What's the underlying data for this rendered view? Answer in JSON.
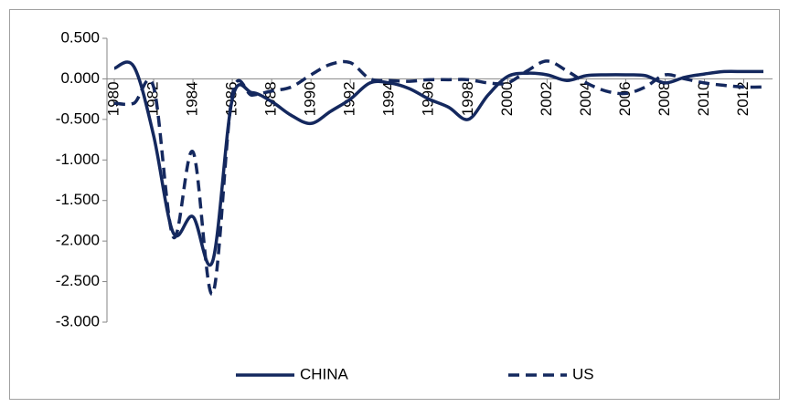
{
  "chart_data": {
    "type": "line",
    "x": [
      1980,
      1981,
      1982,
      1983,
      1984,
      1985,
      1986,
      1987,
      1988,
      1989,
      1990,
      1991,
      1992,
      1993,
      1994,
      1995,
      1996,
      1997,
      1998,
      1999,
      2000,
      2001,
      2002,
      2003,
      2004,
      2005,
      2006,
      2007,
      2008,
      2009,
      2010,
      2011,
      2012,
      2013
    ],
    "xlim": [
      1980,
      2013
    ],
    "xticks": [
      1980,
      1982,
      1984,
      1986,
      1988,
      1990,
      1992,
      1994,
      1996,
      1998,
      2000,
      2002,
      2004,
      2006,
      2008,
      2010,
      2012
    ],
    "ylim": [
      -3,
      0.5
    ],
    "yticks": [
      {
        "value": 0.5,
        "label": "0.500"
      },
      {
        "value": 0,
        "label": "0.000"
      },
      {
        "value": -0.5,
        "label": "-0.500"
      },
      {
        "value": -1,
        "label": "-1.000"
      },
      {
        "value": -1.5,
        "label": "-1.500"
      },
      {
        "value": -2,
        "label": "-2.000"
      },
      {
        "value": -2.5,
        "label": "-2.500"
      },
      {
        "value": -3,
        "label": "-3.000"
      }
    ],
    "legend": "bottom",
    "series": [
      {
        "name": "CHINA",
        "color": "#14285e",
        "line_style": "solid",
        "values": [
          0.13,
          0.15,
          -0.7,
          -1.9,
          -1.7,
          -2.25,
          -0.25,
          -0.17,
          -0.28,
          -0.45,
          -0.55,
          -0.4,
          -0.25,
          -0.05,
          -0.05,
          -0.12,
          -0.25,
          -0.35,
          -0.5,
          -0.2,
          0.03,
          0.07,
          0.05,
          -0.02,
          0.04,
          0.05,
          0.05,
          0.04,
          -0.05,
          0.02,
          0.06,
          0.09,
          0.09,
          0.09
        ]
      },
      {
        "name": "US",
        "color": "#14285e",
        "line_style": "dashed",
        "values": [
          -0.3,
          -0.3,
          -0.1,
          -1.95,
          -0.9,
          -2.65,
          -0.2,
          -0.2,
          -0.15,
          -0.1,
          0.05,
          0.18,
          0.2,
          0,
          -0.02,
          -0.03,
          -0.01,
          -0.01,
          -0.01,
          -0.05,
          -0.05,
          0.1,
          0.22,
          0.1,
          -0.05,
          -0.15,
          -0.18,
          -0.1,
          0.05,
          0,
          -0.05,
          -0.08,
          -0.1,
          -0.1
        ]
      }
    ]
  }
}
